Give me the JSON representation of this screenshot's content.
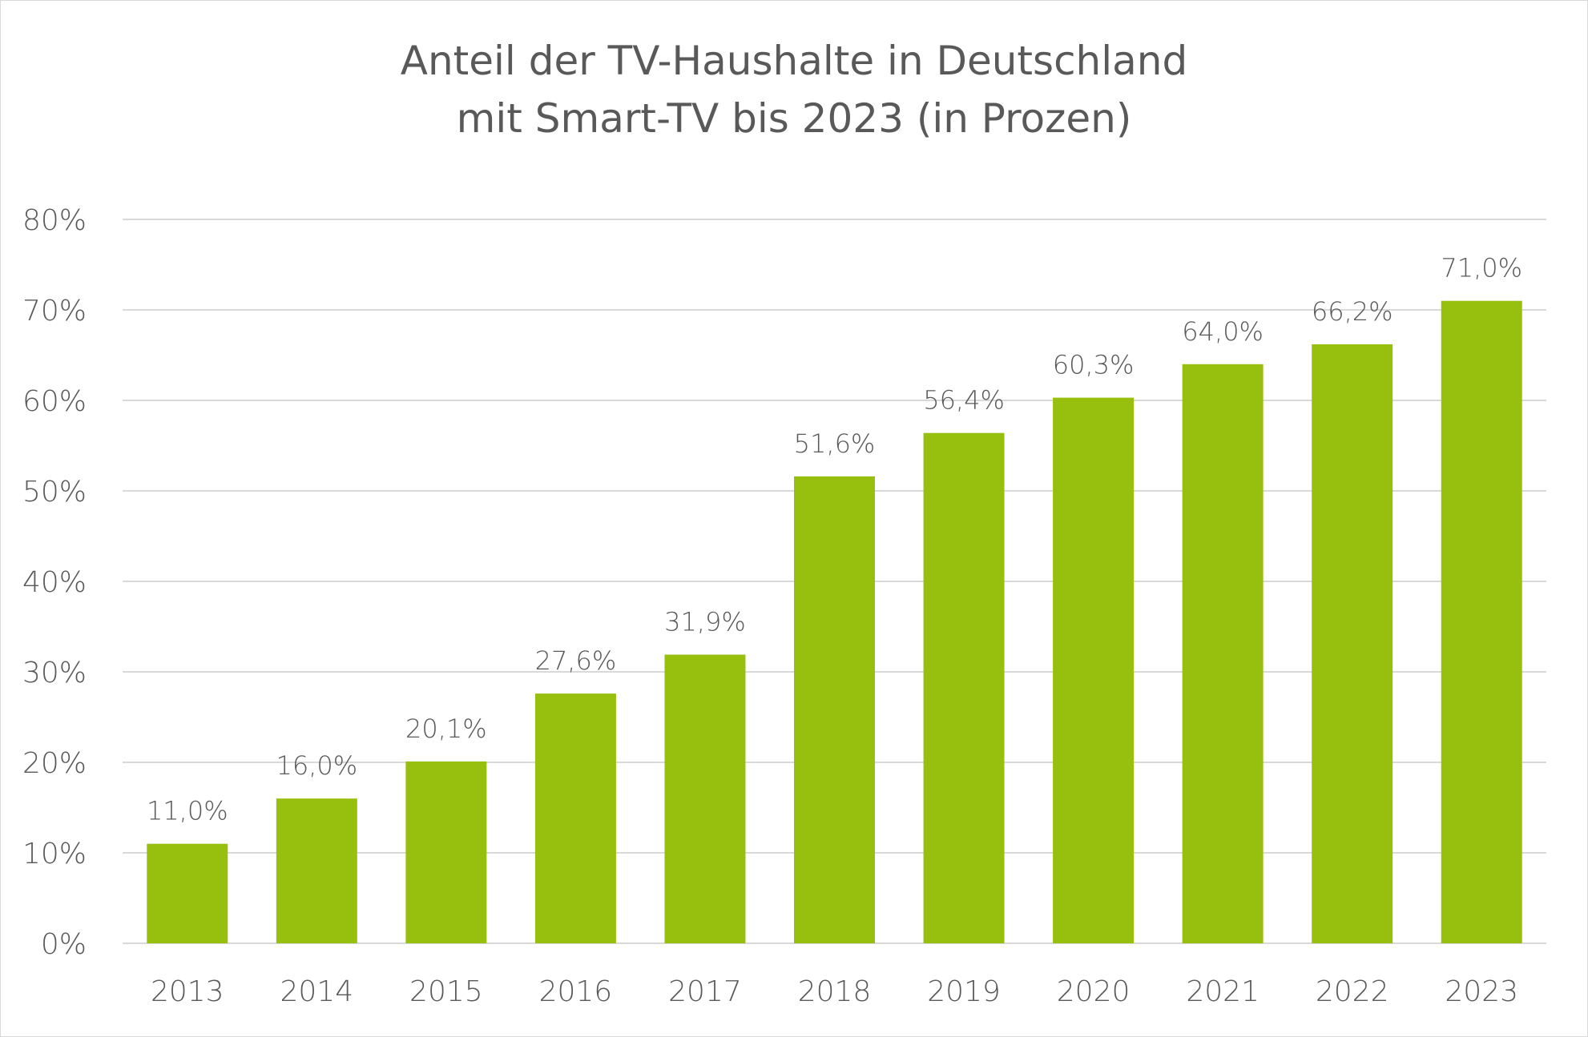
{
  "chart_data": {
    "type": "bar",
    "title_line1": "Anteil der TV-Haushalte in Deutschland",
    "title_line2": "mit Smart-TV bis 2023 (in Prozen)",
    "xlabel": "",
    "ylabel": "",
    "categories": [
      "2013",
      "2014",
      "2015",
      "2016",
      "2017",
      "2018",
      "2019",
      "2020",
      "2021",
      "2022",
      "2023"
    ],
    "values": [
      11.0,
      16.0,
      20.1,
      27.6,
      31.9,
      51.6,
      56.4,
      60.3,
      64.0,
      66.2,
      71.0
    ],
    "value_labels": [
      "11,0%",
      "16,0%",
      "20,1%",
      "27,6%",
      "31,9%",
      "51,6%",
      "56,4%",
      "60,3%",
      "64,0%",
      "66,2%",
      "71,0%"
    ],
    "y_ticks": [
      0,
      10,
      20,
      30,
      40,
      50,
      60,
      70,
      80
    ],
    "y_tick_labels": [
      "0%",
      "10%",
      "20%",
      "30%",
      "40%",
      "50%",
      "60%",
      "70%",
      "80%"
    ],
    "ylim": [
      0,
      80
    ],
    "grid": true,
    "legend": "none",
    "bar_color": "#97bf0d",
    "grid_color": "#d9d9d9",
    "text_color": "#595959"
  }
}
